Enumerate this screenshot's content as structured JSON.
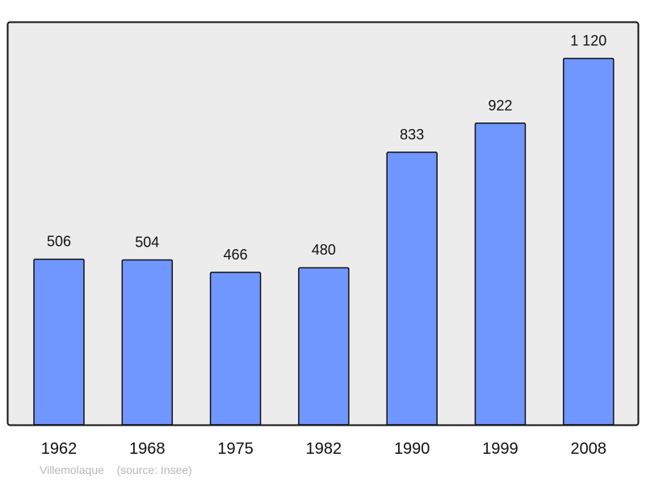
{
  "chart_data": {
    "type": "bar",
    "categories": [
      "1962",
      "1968",
      "1975",
      "1982",
      "1990",
      "1999",
      "2008"
    ],
    "values": [
      506,
      504,
      466,
      480,
      833,
      922,
      1120
    ],
    "data_labels": [
      "506",
      "504",
      "466",
      "480",
      "833",
      "922",
      "1 120"
    ],
    "title": "",
    "xlabel": "",
    "ylabel": "",
    "grid": false,
    "colors": {
      "bar": "#7096ff",
      "bar_stroke": "#111111",
      "plot_bg": "#ececec",
      "frame": "#111111"
    }
  },
  "footer": {
    "place": "Villemolaque",
    "source": "(source: Insee)"
  }
}
